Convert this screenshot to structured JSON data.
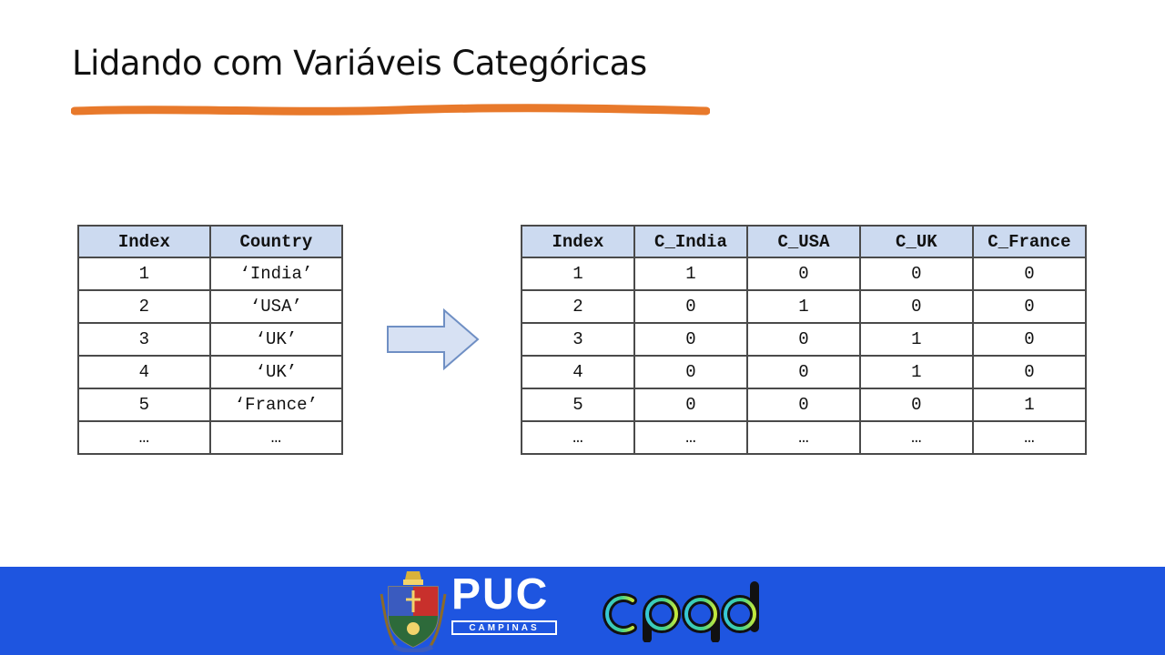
{
  "slide": {
    "title": "Lidando com Variáveis Categóricas",
    "accent_color": "#e8792b"
  },
  "left_table": {
    "headers": [
      "Index",
      "Country"
    ],
    "rows": [
      [
        "1",
        "‘India’"
      ],
      [
        "2",
        "‘USA’"
      ],
      [
        "3",
        "‘UK’"
      ],
      [
        "4",
        "‘UK’"
      ],
      [
        "5",
        "‘France’"
      ],
      [
        "…",
        "…"
      ]
    ]
  },
  "right_table": {
    "headers": [
      "Index",
      "C_India",
      "C_USA",
      "C_UK",
      "C_France"
    ],
    "rows": [
      [
        "1",
        "1",
        "0",
        "0",
        "0"
      ],
      [
        "2",
        "0",
        "1",
        "0",
        "0"
      ],
      [
        "3",
        "0",
        "0",
        "1",
        "0"
      ],
      [
        "4",
        "0",
        "0",
        "1",
        "0"
      ],
      [
        "5",
        "0",
        "0",
        "0",
        "1"
      ],
      [
        "…",
        "…",
        "…",
        "…",
        "…"
      ]
    ]
  },
  "footer": {
    "background": "#1e55e0",
    "puc_logo": {
      "name": "PUC",
      "subtitle": "CAMPINAS",
      "icon": "coat-of-arms-icon"
    },
    "partner_logo": {
      "name": "cpqd",
      "icon": "cpqd-logo"
    }
  }
}
